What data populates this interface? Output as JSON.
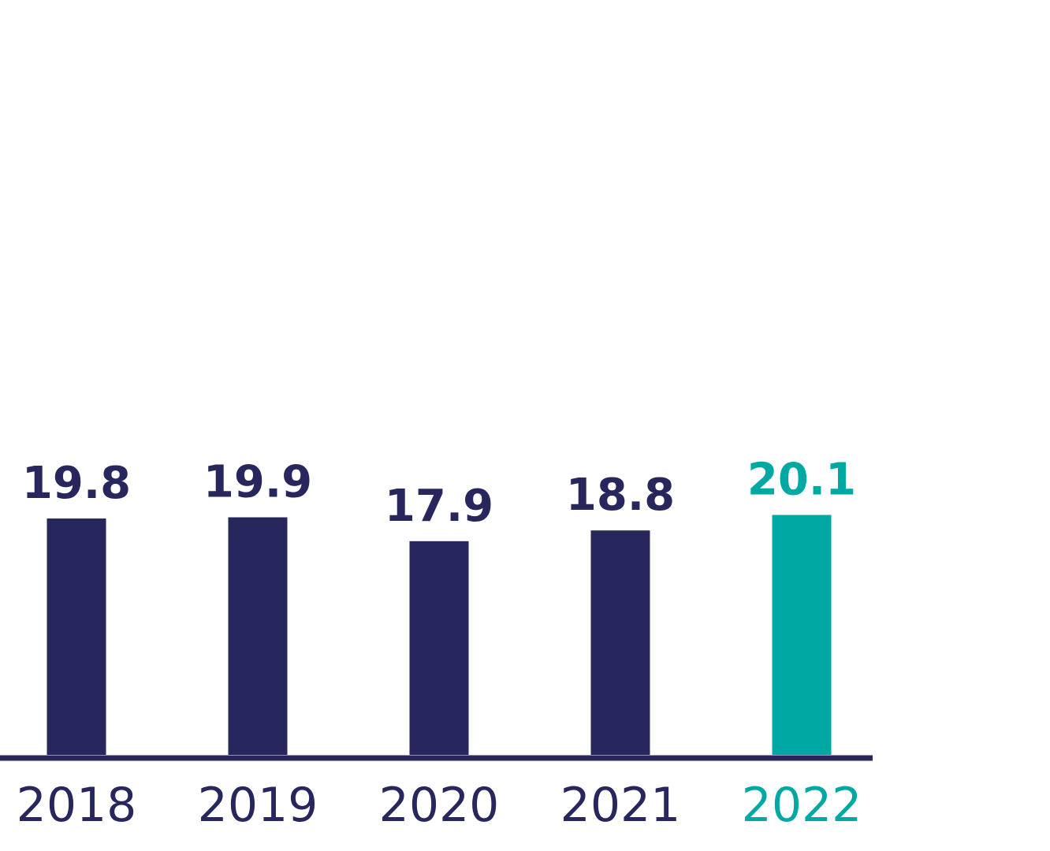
{
  "chart_data": {
    "type": "bar",
    "categories": [
      "2018",
      "2019",
      "2020",
      "2021",
      "2022"
    ],
    "values": [
      19.8,
      19.9,
      17.9,
      18.8,
      20.1
    ],
    "value_labels": [
      "19.8",
      "19.9",
      "17.9",
      "18.8",
      "20.1"
    ],
    "highlight_index": 4,
    "ylim": [
      0,
      100
    ],
    "grid": false,
    "colors": {
      "default": "#27275e",
      "highlight": "#00a8a4",
      "axis": "#27275e"
    }
  }
}
